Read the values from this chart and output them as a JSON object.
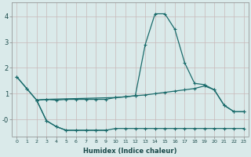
{
  "xlabel": "Humidex (Indice chaleur)",
  "bg_color": "#daeaea",
  "grid_color": "#c8b8b8",
  "line_color": "#1a6b6b",
  "xlim": [
    -0.5,
    23.5
  ],
  "ylim": [
    -0.65,
    4.55
  ],
  "series1_x": [
    0,
    1,
    2,
    3,
    4,
    5,
    6,
    7,
    8,
    9,
    10,
    11,
    12,
    13,
    14,
    15,
    16,
    17,
    18,
    19,
    20,
    21,
    22,
    23
  ],
  "series1_y": [
    1.65,
    1.2,
    0.75,
    0.78,
    0.75,
    0.78,
    0.78,
    0.78,
    0.78,
    0.78,
    0.85,
    0.88,
    0.92,
    0.95,
    1.0,
    1.05,
    1.1,
    1.15,
    1.2,
    1.3,
    1.15,
    0.55,
    0.3,
    0.3
  ],
  "series2_x": [
    0,
    1,
    2,
    3,
    10,
    11,
    12,
    13,
    14,
    15,
    16,
    17,
    18,
    19,
    20,
    21,
    22,
    23
  ],
  "series2_y": [
    1.65,
    1.2,
    0.75,
    0.78,
    0.85,
    0.88,
    0.92,
    2.9,
    4.1,
    4.1,
    3.5,
    2.2,
    1.4,
    1.35,
    1.15,
    0.55,
    0.3,
    0.3
  ],
  "series3_x": [
    2,
    3,
    4,
    5,
    6,
    7,
    8,
    9,
    10,
    11,
    12,
    13,
    14,
    15,
    16,
    17,
    18,
    19,
    20,
    21,
    22,
    23
  ],
  "series3_y": [
    0.75,
    -0.05,
    -0.28,
    -0.42,
    -0.42,
    -0.42,
    -0.42,
    -0.42,
    -0.35,
    -0.35,
    -0.35,
    -0.35,
    -0.35,
    -0.35,
    -0.35,
    -0.35,
    -0.35,
    -0.35,
    -0.35,
    -0.35,
    -0.35,
    -0.35
  ],
  "series4_x": [
    2,
    3,
    4,
    5,
    6,
    7,
    8,
    9
  ],
  "series4_y": [
    0.75,
    -0.05,
    -0.28,
    -0.42,
    -0.42,
    -0.42,
    -0.42,
    -0.42
  ]
}
